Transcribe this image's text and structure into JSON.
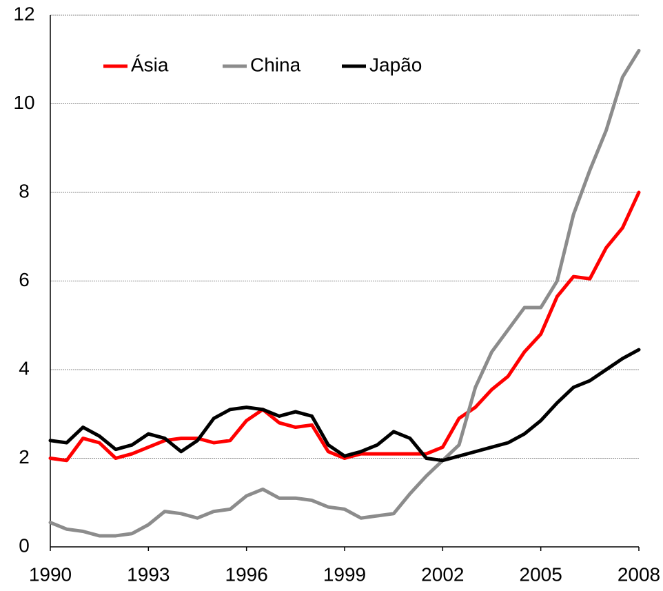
{
  "chart_data": {
    "type": "line",
    "x": [
      1990,
      1990.5,
      1991,
      1991.5,
      1992,
      1992.5,
      1993,
      1993.5,
      1994,
      1994.5,
      1995,
      1995.5,
      1996,
      1996.5,
      1997,
      1997.5,
      1998,
      1998.5,
      1999,
      1999.5,
      2000,
      2000.5,
      2001,
      2001.5,
      2002,
      2002.5,
      2003,
      2003.5,
      2004,
      2004.5,
      2005,
      2005.5,
      2006,
      2006.5,
      2007,
      2007.5,
      2008
    ],
    "series": [
      {
        "name": "Ásia",
        "color": "#ff0000",
        "values": [
          2.0,
          1.95,
          2.45,
          2.35,
          2.0,
          2.1,
          2.25,
          2.4,
          2.45,
          2.45,
          2.35,
          2.4,
          2.85,
          3.1,
          2.8,
          2.7,
          2.75,
          2.15,
          2.0,
          2.1,
          2.1,
          2.1,
          2.1,
          2.1,
          2.25,
          2.9,
          3.15,
          3.55,
          3.85,
          4.4,
          4.8,
          5.65,
          6.1,
          6.05,
          6.75,
          7.2,
          8.0
        ]
      },
      {
        "name": "China",
        "color": "#8c8c8c",
        "values": [
          0.55,
          0.4,
          0.35,
          0.25,
          0.25,
          0.3,
          0.5,
          0.8,
          0.75,
          0.65,
          0.8,
          0.85,
          1.15,
          1.3,
          1.1,
          1.1,
          1.05,
          0.9,
          0.85,
          0.65,
          0.7,
          0.75,
          1.2,
          1.6,
          1.95,
          2.3,
          3.6,
          4.4,
          4.9,
          5.4,
          5.4,
          6.0,
          7.5,
          8.5,
          9.4,
          10.6,
          11.2
        ]
      },
      {
        "name": "Japão",
        "color": "#000000",
        "values": [
          2.4,
          2.35,
          2.7,
          2.5,
          2.2,
          2.3,
          2.55,
          2.45,
          2.15,
          2.4,
          2.9,
          3.1,
          3.15,
          3.1,
          2.95,
          3.05,
          2.95,
          2.3,
          2.05,
          2.15,
          2.3,
          2.6,
          2.45,
          2.0,
          1.95,
          2.05,
          2.15,
          2.25,
          2.35,
          2.55,
          2.85,
          3.25,
          3.6,
          3.75,
          4.0,
          4.25,
          4.45
        ]
      }
    ],
    "xlim": [
      1990,
      2008
    ],
    "xticks": [
      1990,
      1993,
      1996,
      1999,
      2002,
      2005,
      2008
    ],
    "ylim": [
      0,
      12
    ],
    "yticks": [
      0,
      2,
      4,
      6,
      8,
      10,
      12
    ],
    "grid": true,
    "legend": "top-left"
  }
}
